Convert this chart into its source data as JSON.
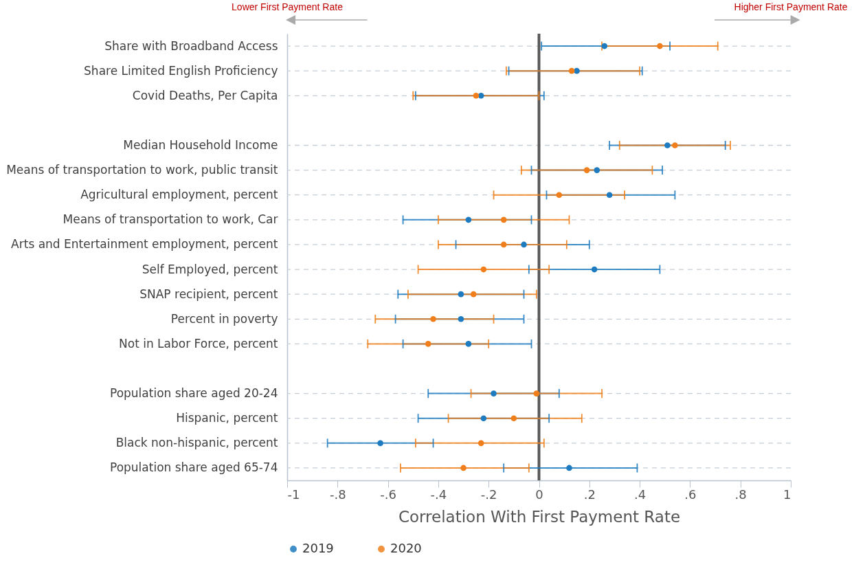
{
  "chart_data": {
    "type": "scatter",
    "orientation": "horizontal",
    "xlabel": "Correlation With First Payment Rate",
    "categories": [
      "Share with Broadband Access",
      "Share Limited English Proficiency",
      "Covid Deaths, Per Capita",
      null,
      "Median Household Income",
      "Means of transportation to work, public transit",
      "Agricultural employment, percent",
      "Means of transportation to work, Car",
      "Arts and Entertainment employment, percent",
      "Self Employed, percent",
      "SNAP recipient, percent",
      "Percent in poverty",
      "Not in Labor Force, percent",
      null,
      "Population share aged 20-24",
      "Hispanic, percent",
      "Black non-hispanic, percent",
      "Population share aged 65-74"
    ],
    "series": [
      {
        "name": "2019",
        "color": "#1f7bbf",
        "values": [
          0.26,
          0.15,
          -0.23,
          null,
          0.51,
          0.23,
          0.28,
          -0.28,
          -0.06,
          0.22,
          -0.31,
          -0.31,
          -0.28,
          null,
          -0.18,
          -0.22,
          -0.63,
          0.12
        ],
        "errors": [
          [
            0.01,
            0.52
          ],
          [
            -0.12,
            0.41
          ],
          [
            -0.49,
            0.02
          ],
          null,
          [
            0.28,
            0.74
          ],
          [
            -0.03,
            0.49
          ],
          [
            0.03,
            0.54
          ],
          [
            -0.54,
            -0.03
          ],
          [
            -0.33,
            0.2
          ],
          [
            -0.04,
            0.48
          ],
          [
            -0.56,
            -0.06
          ],
          [
            -0.57,
            -0.06
          ],
          [
            -0.54,
            -0.03
          ],
          null,
          [
            -0.44,
            0.08
          ],
          [
            -0.48,
            0.04
          ],
          [
            -0.84,
            -0.42
          ],
          [
            -0.14,
            0.39
          ]
        ]
      },
      {
        "name": "2020",
        "color": "#f07f1b",
        "values": [
          0.48,
          0.13,
          -0.25,
          null,
          0.54,
          0.19,
          0.08,
          -0.14,
          -0.14,
          -0.22,
          -0.26,
          -0.42,
          -0.44,
          null,
          -0.01,
          -0.1,
          -0.23,
          -0.3
        ],
        "errors": [
          [
            0.25,
            0.71
          ],
          [
            -0.13,
            0.4
          ],
          [
            -0.5,
            0.0
          ],
          null,
          [
            0.32,
            0.76
          ],
          [
            -0.07,
            0.45
          ],
          [
            -0.18,
            0.34
          ],
          [
            -0.4,
            0.12
          ],
          [
            -0.4,
            0.11
          ],
          [
            -0.48,
            0.04
          ],
          [
            -0.52,
            -0.01
          ],
          [
            -0.65,
            -0.18
          ],
          [
            -0.68,
            -0.2
          ],
          null,
          [
            -0.27,
            0.25
          ],
          [
            -0.36,
            0.17
          ],
          [
            -0.49,
            0.02
          ],
          [
            -0.55,
            -0.04
          ]
        ]
      }
    ],
    "xlim": [
      -1,
      1
    ],
    "xticks": [
      -1,
      {
        "value": -0.8,
        "label": "-.8"
      },
      {
        "value": -0.6,
        "label": "-.6"
      },
      {
        "value": -0.4,
        "label": "-.4"
      },
      {
        "value": -0.2,
        "label": "-.2"
      },
      0,
      {
        "value": 0.2,
        "label": ".2"
      },
      {
        "value": 0.4,
        "label": ".4"
      },
      {
        "value": 0.6,
        "label": ".6"
      },
      {
        "value": 0.8,
        "label": ".8"
      },
      1
    ],
    "ref_lines": [
      {
        "axis": "x",
        "value": 0,
        "color": "#595959"
      }
    ],
    "annotations": [
      "Lower First Payment Rate",
      "Higher First Payment Rate"
    ],
    "grid": "y",
    "legend": "bottom",
    "marker": "circle"
  }
}
